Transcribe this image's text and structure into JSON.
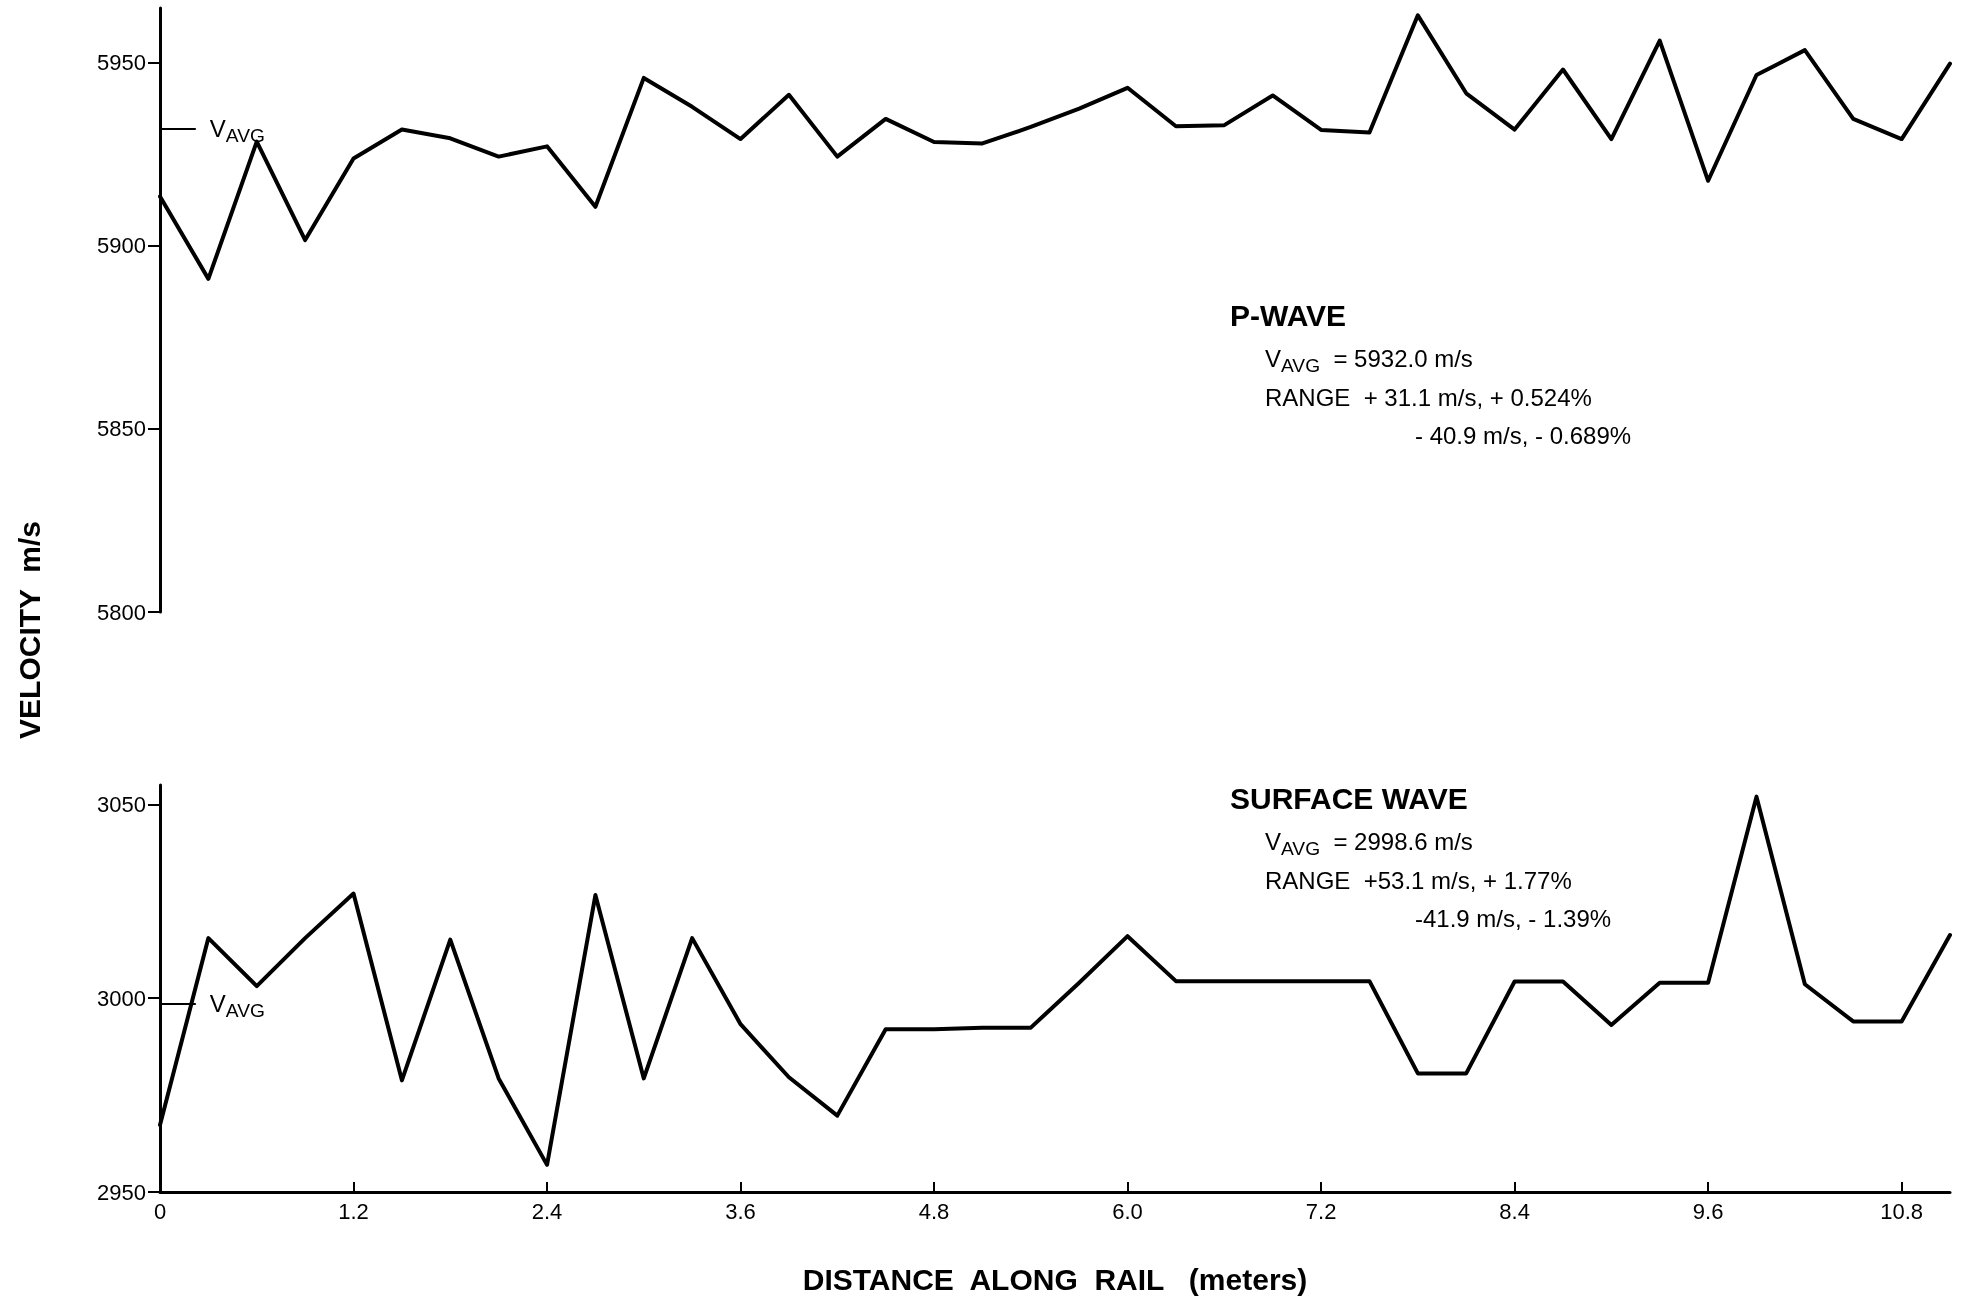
{
  "chart_data": [
    {
      "type": "line",
      "title": "P-WAVE",
      "ylabel": "VELOCITY  m/s",
      "annotations": [
        "V$_{AVG}$  = 5932.0 m/s",
        "RANGE  + 31.1 m/s, + 0.524%",
        "- 40.9 m/s, - 0.689%"
      ],
      "x": [
        0,
        0.3,
        0.6,
        0.9,
        1.2,
        1.5,
        1.8,
        2.1,
        2.4,
        2.7,
        3.0,
        3.3,
        3.6,
        3.9,
        4.2,
        4.5,
        4.8,
        5.1,
        5.4,
        5.7,
        6.0,
        6.3,
        6.6,
        6.9,
        7.2,
        7.5,
        7.8,
        8.1,
        8.4,
        8.7,
        9.0,
        9.3,
        9.6,
        9.9,
        10.2,
        10.5,
        10.8,
        11.1
      ],
      "series": [
        {
          "color": "#000000",
          "values": [
            5913.5,
            5891,
            5928.5,
            5901.6,
            5923.9,
            5931.8,
            5929.4,
            5924.4,
            5927.2,
            5910.7,
            5945.9,
            5938,
            5929.2,
            5941.3,
            5924.4,
            5934.7,
            5928.4,
            5928,
            5932.5,
            5937.5,
            5943.2,
            5932.7,
            5933,
            5941.1,
            5931.7,
            5931,
            5963,
            5941.7,
            5931.8,
            5948.2,
            5929.2,
            5956.1,
            5917.8,
            5946.7,
            5953.5,
            5934.7,
            5929.2,
            5949.8
          ]
        }
      ],
      "ylim": [
        5800,
        5965
      ],
      "yticks": [
        5800,
        5850,
        5900,
        5950
      ],
      "tick_labels": "y",
      "marker": "none",
      "ref_lines": [
        {
          "axis": "y",
          "value": 5932,
          "label": "V$_{AVG}$"
        }
      ]
    },
    {
      "type": "line",
      "title": "SURFACE WAVE",
      "xlabel": "DISTANCE  ALONG  RAIL   (meters)",
      "annotations": [
        "V$_{AVG}$  = 2998.6 m/s",
        "RANGE  +53.1 m/s, + 1.77%",
        "-41.9 m/s, - 1.39%"
      ],
      "x": [
        0,
        0.3,
        0.6,
        0.9,
        1.2,
        1.5,
        1.8,
        2.1,
        2.4,
        2.7,
        3.0,
        3.3,
        3.6,
        3.9,
        4.2,
        4.5,
        4.8,
        5.1,
        5.4,
        5.7,
        6.0,
        6.3,
        6.6,
        6.9,
        7.2,
        7.5,
        7.8,
        8.1,
        8.4,
        8.7,
        9.0,
        9.3,
        9.6,
        9.9,
        10.2,
        10.5,
        10.8,
        11.1
      ],
      "series": [
        {
          "color": "#000000",
          "values": [
            2967.3,
            3015.5,
            3003.1,
            3015.5,
            3027,
            2978.8,
            3015.1,
            2979.3,
            2957,
            3026.6,
            2979.3,
            3015.5,
            2993.3,
            2979.6,
            2969.7,
            2992,
            2992,
            2992.4,
            2992.4,
            3004,
            3016,
            3004.4,
            3004.4,
            3004.4,
            3004.4,
            3004.4,
            2980.6,
            2980.6,
            3004.3,
            3004.3,
            2993.1,
            3004,
            3004,
            3052,
            3003.6,
            2994,
            2994,
            3016.3
          ]
        }
      ],
      "xlim": [
        0,
        11.1
      ],
      "ylim": [
        2950,
        3055
      ],
      "yticks": [
        2950,
        3000,
        3050
      ],
      "marker": "none",
      "xticks": [
        0,
        1.2,
        2.4,
        3.6,
        4.8,
        {
          "value": 6,
          "label": "6.0"
        },
        7.2,
        8.4,
        9.6,
        10.8
      ],
      "ref_lines": [
        {
          "axis": "y",
          "value": 2998.6,
          "label": "V$_{AVG}$"
        }
      ]
    }
  ]
}
